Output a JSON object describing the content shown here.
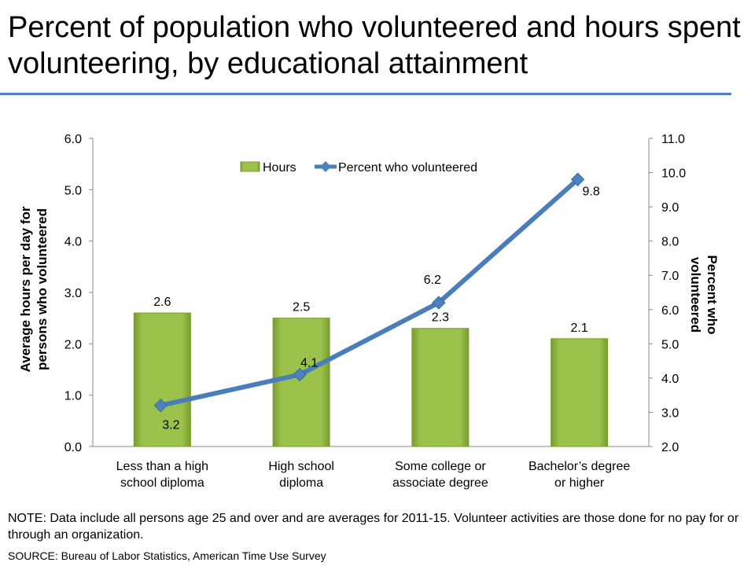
{
  "title": "Percent of population who volunteered and hours spent volunteering, by educational attainment",
  "note": "NOTE: Data include all persons age 25 and over and are averages for 2011-15. Volunteer activities are those done for no pay for or through an organization.",
  "source": "SOURCE: Bureau of Labor Statistics, American Time Use Survey",
  "colors": {
    "bar": "#8db33c",
    "line": "#4a7ebb",
    "rule": "#4f81bd"
  },
  "chart_data": {
    "type": "bar+line",
    "categories": [
      [
        "Less than a high",
        "school diploma"
      ],
      [
        "High school",
        "diploma"
      ],
      [
        "Some college or",
        "associate degree"
      ],
      [
        "Bachelor’s degree",
        "or higher"
      ]
    ],
    "series": [
      {
        "name": "Hours",
        "type": "bar",
        "axis": "left",
        "values": [
          2.6,
          2.5,
          2.3,
          2.1
        ],
        "labels": [
          "2.6",
          "2.5",
          "2.3",
          "2.1"
        ]
      },
      {
        "name": "Percent who volunteered",
        "type": "line",
        "axis": "right",
        "values": [
          3.2,
          4.1,
          6.2,
          9.8
        ],
        "labels": [
          "3.2",
          "4.1",
          "6.2",
          "9.8"
        ]
      }
    ],
    "ylabel_left": [
      "Average hours per day for",
      "persons who volunteered"
    ],
    "ylabel_right": [
      "Percent who",
      "volunteered"
    ],
    "ylim_left": [
      0,
      6
    ],
    "yticks_left": [
      "0.0",
      "1.0",
      "2.0",
      "3.0",
      "4.0",
      "5.0",
      "6.0"
    ],
    "ylim_right": [
      2,
      11
    ],
    "yticks_right": [
      "2.0",
      "3.0",
      "4.0",
      "5.0",
      "6.0",
      "7.0",
      "8.0",
      "9.0",
      "10.0",
      "11.0"
    ],
    "legend": "top-center"
  }
}
